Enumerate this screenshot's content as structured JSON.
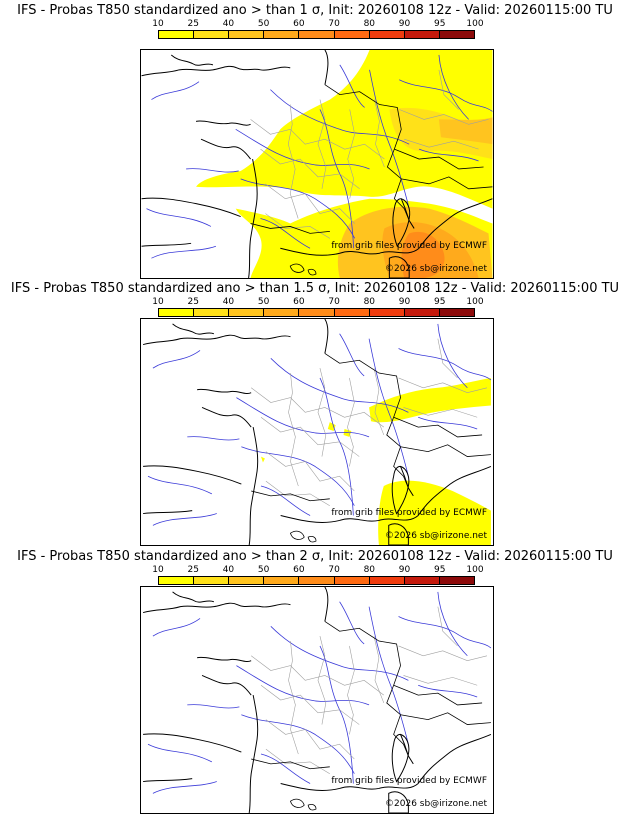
{
  "colorbar": {
    "ticks": [
      "10",
      "25",
      "40",
      "50",
      "60",
      "70",
      "80",
      "90",
      "95",
      "100"
    ],
    "colors": [
      "#ffff00",
      "#ffe119",
      "#ffc41f",
      "#ffaa1c",
      "#ff8c1a",
      "#ff6a12",
      "#f03c0e",
      "#c41a0c",
      "#8c0a0a"
    ]
  },
  "panels": [
    {
      "title": "IFS - Probas T850  standardized ano > than 1 σ, Init: 20260108 12z - Valid: 20260115:00 TU",
      "credit_source": "from grib files provided by ECMWF",
      "credit_copyright": "©2026 sb@irizone.net",
      "coverage": "high"
    },
    {
      "title": "IFS - Probas T850  standardized ano > than 1.5 σ, Init: 20260108 12z - Valid: 20260115:00 TU",
      "credit_source": "from grib files provided by ECMWF",
      "credit_copyright": "©2026 sb@irizone.net",
      "coverage": "medium"
    },
    {
      "title": "IFS - Probas T850  standardized ano > than 2 σ, Init: 20260108 12z - Valid: 20260115:00 TU",
      "credit_source": "from grib files provided by ECMWF",
      "credit_copyright": "©2026 sb@irizone.net",
      "coverage": "none"
    }
  ]
}
